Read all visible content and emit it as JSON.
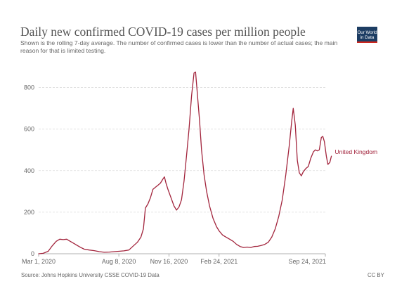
{
  "header": {
    "title": "Daily new confirmed COVID-19 cases per million people",
    "subtitle": "Shown is the rolling 7-day average. The number of confirmed cases is lower than the number of actual cases; the main reason for that is limited testing."
  },
  "logo": {
    "line1": "Our World",
    "line2": "in Data"
  },
  "footer": {
    "source": "Source: Johns Hopkins University CSSE COVID-19 Data",
    "license": "CC BY"
  },
  "chart_data": {
    "type": "line",
    "title": "Daily new confirmed COVID-19 cases per million people",
    "xlabel": "",
    "ylabel": "",
    "ylim": [
      0,
      900
    ],
    "grid": true,
    "yticks": [
      0,
      200,
      400,
      600,
      800
    ],
    "xticks": [
      {
        "date": "2020-03-01",
        "label": "Mar 1, 2020"
      },
      {
        "date": "2020-08-08",
        "label": "Aug 8, 2020"
      },
      {
        "date": "2020-11-16",
        "label": "Nov 16, 2020"
      },
      {
        "date": "2021-02-24",
        "label": "Feb 24, 2021"
      },
      {
        "date": "2021-09-24",
        "label": "Sep 24, 2021"
      }
    ],
    "series": [
      {
        "name": "United Kingdom",
        "color": "#a2243c",
        "points": [
          [
            "2020-03-01",
            0
          ],
          [
            "2020-03-10",
            2
          ],
          [
            "2020-03-20",
            12
          ],
          [
            "2020-03-28",
            38
          ],
          [
            "2020-04-05",
            60
          ],
          [
            "2020-04-12",
            70
          ],
          [
            "2020-04-19",
            68
          ],
          [
            "2020-04-26",
            70
          ],
          [
            "2020-05-03",
            60
          ],
          [
            "2020-05-10",
            50
          ],
          [
            "2020-05-17",
            40
          ],
          [
            "2020-05-24",
            30
          ],
          [
            "2020-05-31",
            22
          ],
          [
            "2020-06-10",
            18
          ],
          [
            "2020-06-20",
            15
          ],
          [
            "2020-06-30",
            10
          ],
          [
            "2020-07-10",
            7
          ],
          [
            "2020-07-20",
            8
          ],
          [
            "2020-07-30",
            10
          ],
          [
            "2020-08-08",
            12
          ],
          [
            "2020-08-18",
            14
          ],
          [
            "2020-08-28",
            18
          ],
          [
            "2020-09-07",
            40
          ],
          [
            "2020-09-14",
            55
          ],
          [
            "2020-09-21",
            80
          ],
          [
            "2020-09-26",
            120
          ],
          [
            "2020-09-30",
            220
          ],
          [
            "2020-10-05",
            240
          ],
          [
            "2020-10-10",
            270
          ],
          [
            "2020-10-15",
            310
          ],
          [
            "2020-10-20",
            320
          ],
          [
            "2020-10-25",
            330
          ],
          [
            "2020-10-30",
            340
          ],
          [
            "2020-11-04",
            360
          ],
          [
            "2020-11-07",
            370
          ],
          [
            "2020-11-10",
            340
          ],
          [
            "2020-11-14",
            310
          ],
          [
            "2020-11-20",
            270
          ],
          [
            "2020-11-26",
            230
          ],
          [
            "2020-12-01",
            210
          ],
          [
            "2020-12-06",
            225
          ],
          [
            "2020-12-11",
            260
          ],
          [
            "2020-12-16",
            350
          ],
          [
            "2020-12-21",
            470
          ],
          [
            "2020-12-26",
            600
          ],
          [
            "2020-12-31",
            760
          ],
          [
            "2021-01-05",
            870
          ],
          [
            "2021-01-08",
            875
          ],
          [
            "2021-01-12",
            760
          ],
          [
            "2021-01-16",
            640
          ],
          [
            "2021-01-20",
            500
          ],
          [
            "2021-01-25",
            380
          ],
          [
            "2021-01-30",
            300
          ],
          [
            "2021-02-05",
            230
          ],
          [
            "2021-02-12",
            170
          ],
          [
            "2021-02-19",
            130
          ],
          [
            "2021-02-24",
            110
          ],
          [
            "2021-03-03",
            90
          ],
          [
            "2021-03-10",
            80
          ],
          [
            "2021-03-17",
            70
          ],
          [
            "2021-03-24",
            60
          ],
          [
            "2021-03-31",
            45
          ],
          [
            "2021-04-07",
            35
          ],
          [
            "2021-04-14",
            30
          ],
          [
            "2021-04-21",
            32
          ],
          [
            "2021-04-28",
            30
          ],
          [
            "2021-05-05",
            35
          ],
          [
            "2021-05-12",
            36
          ],
          [
            "2021-05-19",
            40
          ],
          [
            "2021-05-26",
            45
          ],
          [
            "2021-06-02",
            55
          ],
          [
            "2021-06-09",
            80
          ],
          [
            "2021-06-16",
            120
          ],
          [
            "2021-06-23",
            180
          ],
          [
            "2021-06-30",
            260
          ],
          [
            "2021-07-07",
            380
          ],
          [
            "2021-07-14",
            520
          ],
          [
            "2021-07-19",
            640
          ],
          [
            "2021-07-22",
            700
          ],
          [
            "2021-07-26",
            620
          ],
          [
            "2021-07-30",
            450
          ],
          [
            "2021-08-03",
            390
          ],
          [
            "2021-08-07",
            375
          ],
          [
            "2021-08-11",
            395
          ],
          [
            "2021-08-16",
            410
          ],
          [
            "2021-08-21",
            420
          ],
          [
            "2021-08-26",
            460
          ],
          [
            "2021-08-31",
            490
          ],
          [
            "2021-09-04",
            500
          ],
          [
            "2021-09-08",
            495
          ],
          [
            "2021-09-12",
            500
          ],
          [
            "2021-09-16",
            560
          ],
          [
            "2021-09-19",
            565
          ],
          [
            "2021-09-22",
            540
          ],
          [
            "2021-09-26",
            470
          ],
          [
            "2021-09-29",
            430
          ],
          [
            "2021-10-03",
            440
          ],
          [
            "2021-10-06",
            470
          ]
        ]
      }
    ]
  }
}
